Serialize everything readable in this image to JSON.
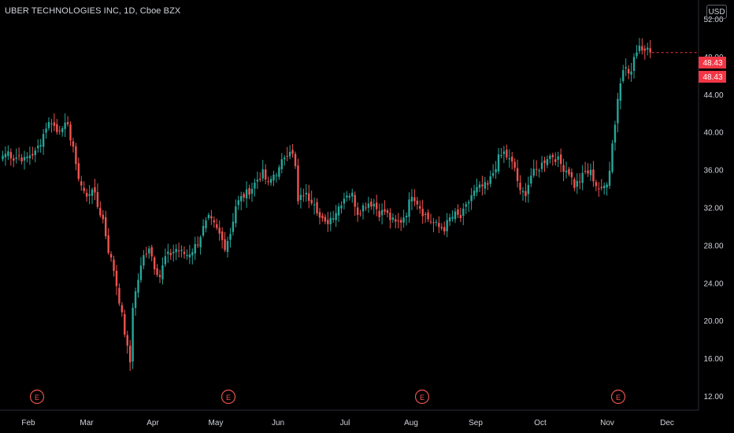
{
  "header": {
    "symbol_title": "UBER TECHNOLOGIES INC, 1D, Cboe BZX",
    "currency_button": "USD"
  },
  "price_labels": {
    "last_price": "48.43",
    "prev_close": "48.43"
  },
  "colors": {
    "up": "#26a69a",
    "down": "#ef5350",
    "background": "#000000",
    "axis_text": "#d1d4dc",
    "earnings_marker": "#ef5350",
    "last_price_label": "#f23645"
  },
  "chart_data": {
    "type": "candlestick",
    "title": "UBER TECHNOLOGIES INC, 1D, Cboe BZX",
    "xlabel": "",
    "ylabel": "",
    "ylim": [
      10.5,
      54
    ],
    "y_ticks": [
      12,
      16,
      20,
      24,
      28,
      32,
      36,
      40,
      44,
      48,
      52
    ],
    "y_tick_labels": [
      "12.00",
      "16.00",
      "20.00",
      "24.00",
      "28.00",
      "32.00",
      "36.00",
      "40.00",
      "44.00",
      "48.00",
      "52.00"
    ],
    "x_tick_labels": [
      "Feb",
      "Mar",
      "Apr",
      "May",
      "Jun",
      "Jul",
      "Aug",
      "Sep",
      "Oct",
      "Nov",
      "Dec"
    ],
    "last_price": 48.43,
    "grid": false,
    "earnings_markers": [
      {
        "label": "E",
        "month": "Feb"
      },
      {
        "label": "E",
        "month": "May"
      },
      {
        "label": "E",
        "month": "Aug"
      },
      {
        "label": "E",
        "month": "Nov"
      }
    ],
    "series": [
      {
        "close_path": [
          [
            0,
            37.5
          ],
          [
            2,
            37.9
          ],
          [
            4,
            37.2
          ],
          [
            6,
            37.5
          ],
          [
            8,
            37.0
          ],
          [
            10,
            37.6
          ],
          [
            12,
            37.8
          ],
          [
            14,
            39.0
          ],
          [
            16,
            40.6
          ],
          [
            18,
            41.2
          ],
          [
            20,
            40.0
          ],
          [
            22,
            40.8
          ],
          [
            24,
            40.4
          ],
          [
            26,
            38.5
          ],
          [
            27,
            36.2
          ],
          [
            29,
            34.4
          ],
          [
            31,
            33.0
          ],
          [
            33,
            34.2
          ],
          [
            35,
            32.1
          ],
          [
            37,
            30.7
          ],
          [
            39,
            27.5
          ],
          [
            41,
            25.4
          ],
          [
            43,
            22.2
          ],
          [
            44,
            20.5
          ],
          [
            46,
            17.0
          ],
          [
            47,
            15.6
          ],
          [
            48,
            21.6
          ],
          [
            50,
            24.4
          ],
          [
            52,
            26.8
          ],
          [
            54,
            27.9
          ],
          [
            56,
            25.8
          ],
          [
            58,
            24.7
          ],
          [
            60,
            26.7
          ],
          [
            62,
            27.1
          ],
          [
            64,
            27.6
          ],
          [
            66,
            27.2
          ],
          [
            68,
            27.0
          ],
          [
            70,
            27.5
          ],
          [
            72,
            28.3
          ],
          [
            74,
            29.8
          ],
          [
            76,
            30.8
          ],
          [
            78,
            30.1
          ],
          [
            80,
            29.1
          ],
          [
            82,
            27.9
          ],
          [
            84,
            29.3
          ],
          [
            86,
            32.2
          ],
          [
            88,
            33.0
          ],
          [
            90,
            33.5
          ],
          [
            92,
            34.1
          ],
          [
            94,
            35.0
          ],
          [
            96,
            35.6
          ],
          [
            98,
            34.4
          ],
          [
            100,
            35.5
          ],
          [
            102,
            36.0
          ],
          [
            104,
            37.5
          ],
          [
            106,
            38.2
          ],
          [
            107,
            37.5
          ],
          [
            108,
            36.2
          ],
          [
            109,
            32.5
          ],
          [
            111,
            33.5
          ],
          [
            113,
            33.0
          ],
          [
            115,
            32.7
          ],
          [
            117,
            30.9
          ],
          [
            119,
            30.2
          ],
          [
            121,
            30.9
          ],
          [
            123,
            31.6
          ],
          [
            125,
            32.6
          ],
          [
            127,
            33.5
          ],
          [
            129,
            33.3
          ],
          [
            131,
            31.5
          ],
          [
            133,
            32.1
          ],
          [
            135,
            32.5
          ],
          [
            137,
            32.4
          ],
          [
            139,
            31.4
          ],
          [
            141,
            31.6
          ],
          [
            143,
            30.8
          ],
          [
            145,
            30.3
          ],
          [
            147,
            30.6
          ],
          [
            149,
            31.5
          ],
          [
            151,
            33.5
          ],
          [
            153,
            32.6
          ],
          [
            155,
            31.5
          ],
          [
            157,
            30.8
          ],
          [
            159,
            30.3
          ],
          [
            161,
            29.9
          ],
          [
            163,
            29.8
          ],
          [
            165,
            30.8
          ],
          [
            167,
            31.2
          ],
          [
            169,
            30.9
          ],
          [
            171,
            32.0
          ],
          [
            173,
            33.3
          ],
          [
            175,
            33.9
          ],
          [
            177,
            34.2
          ],
          [
            179,
            34.3
          ],
          [
            181,
            35.7
          ],
          [
            183,
            37.2
          ],
          [
            185,
            37.8
          ],
          [
            187,
            37.0
          ],
          [
            189,
            36.2
          ],
          [
            191,
            33.5
          ],
          [
            193,
            33.6
          ],
          [
            195,
            35.4
          ],
          [
            197,
            35.9
          ],
          [
            199,
            36.6
          ],
          [
            201,
            37.4
          ],
          [
            203,
            37.5
          ],
          [
            205,
            37.0
          ],
          [
            207,
            36.2
          ],
          [
            209,
            35.8
          ],
          [
            211,
            34.3
          ],
          [
            213,
            34.9
          ],
          [
            215,
            35.7
          ],
          [
            217,
            35.7
          ],
          [
            219,
            34.4
          ],
          [
            221,
            33.7
          ],
          [
            223,
            34.8
          ],
          [
            224,
            36.2
          ],
          [
            225,
            38.8
          ],
          [
            226,
            41.0
          ],
          [
            227,
            43.6
          ],
          [
            229,
            46.7
          ],
          [
            230,
            47.3
          ],
          [
            231,
            46.6
          ],
          [
            232,
            46.2
          ],
          [
            233,
            48.0
          ],
          [
            235,
            48.8
          ],
          [
            236,
            49.0
          ],
          [
            237,
            48.7
          ],
          [
            238,
            49.2
          ],
          [
            239,
            48.43
          ]
        ]
      }
    ]
  }
}
